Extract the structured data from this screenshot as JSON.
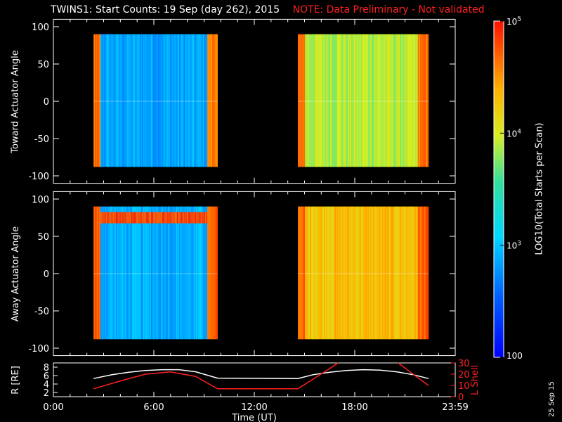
{
  "header": {
    "title": "TWINS1: Start Counts: 19 Sep (day 262), 2015",
    "note": "NOTE: Data Preliminary - Not validated",
    "note_color": "#ff2020"
  },
  "colorbar": {
    "label": "LOG10(Total Starts per Scan)",
    "tick_labels": [
      "100",
      "10^3",
      "10^4",
      "10^5"
    ],
    "tick_values": [
      100,
      1000,
      10000,
      100000
    ],
    "range": [
      100,
      100000
    ],
    "colormap": "rainbow"
  },
  "footer": {
    "date_stamp": "25 Sep 15"
  },
  "chart_data": [
    {
      "type": "heatmap",
      "name": "toward-panel",
      "ylabel": "Toward Actuator Angle",
      "ylim": [
        -110,
        110
      ],
      "yticks": [
        100,
        50,
        0,
        -50,
        -100
      ],
      "xlim": [
        0,
        24
      ],
      "x_tick_labels": [
        "0:00",
        "6:00",
        "12:00",
        "18:00",
        "23:59"
      ],
      "x_tick_values": [
        0,
        6,
        12,
        18,
        24
      ],
      "blocks": [
        {
          "t_start": 2.4,
          "t_end": 9.8,
          "angle_range": [
            -88,
            90
          ],
          "typical_log_counts": 2.85,
          "edge_log_counts": 4.6
        },
        {
          "t_start": 14.6,
          "t_end": 22.4,
          "angle_range": [
            -88,
            90
          ],
          "typical_log_counts": 3.9,
          "edge_log_counts": 4.6
        }
      ]
    },
    {
      "type": "heatmap",
      "name": "away-panel",
      "ylabel": "Away Actuator Angle",
      "ylim": [
        -110,
        110
      ],
      "yticks": [
        100,
        50,
        0,
        -50,
        -100
      ],
      "xlim": [
        0,
        24
      ],
      "x_tick_labels": [
        "0:00",
        "6:00",
        "12:00",
        "18:00",
        "23:59"
      ],
      "x_tick_values": [
        0,
        6,
        12,
        18,
        24
      ],
      "blocks": [
        {
          "t_start": 2.4,
          "t_end": 9.8,
          "angle_range": [
            -88,
            90
          ],
          "typical_log_counts": 2.9,
          "edge_log_counts": 4.7,
          "band_angle": 75,
          "band_log_counts": 4.8
        },
        {
          "t_start": 14.6,
          "t_end": 22.4,
          "angle_range": [
            -88,
            90
          ],
          "typical_log_counts": 4.3,
          "edge_log_counts": 4.7
        }
      ]
    },
    {
      "type": "line",
      "name": "orbit-panel",
      "xlabel": "Time (UT)",
      "x_tick_labels": [
        "0:00",
        "6:00",
        "12:00",
        "18:00",
        "23:59"
      ],
      "x_tick_values": [
        0,
        6,
        12,
        18,
        24
      ],
      "xlim": [
        0,
        24
      ],
      "ylabel": "R [RE]",
      "ylim": [
        1,
        9
      ],
      "yticks": [
        2,
        4,
        6,
        8
      ],
      "y2label": "L Shell",
      "y2lim": [
        0,
        30
      ],
      "y2ticks": [
        0,
        10,
        20,
        30
      ],
      "y2_color": "#ff2020",
      "series": [
        {
          "name": "R",
          "axis": "left",
          "color": "#ffffff",
          "x": [
            2.4,
            3.5,
            4.5,
            5.5,
            6.5,
            7.5,
            8.5,
            9.8,
            14.6,
            15.5,
            16.5,
            17.5,
            18.5,
            19.5,
            20.5,
            21.5,
            22.4
          ],
          "y": [
            5.3,
            6.2,
            6.8,
            7.2,
            7.4,
            7.4,
            6.9,
            5.4,
            5.3,
            6.2,
            6.8,
            7.2,
            7.4,
            7.3,
            6.9,
            6.2,
            5.3
          ]
        },
        {
          "name": "L Shell",
          "axis": "right",
          "color": "#ff2020",
          "x": [
            2.4,
            4.0,
            5.5,
            7.0,
            8.5,
            9.8,
            14.6,
            16.5,
            17.0
          ],
          "y": [
            7,
            14,
            20,
            22,
            18,
            7,
            7,
            25,
            31
          ]
        },
        {
          "name": "L Shell 2",
          "axis": "right",
          "color": "#ff2020",
          "x": [
            20.6,
            21.3,
            22.4
          ],
          "y": [
            31,
            22,
            10
          ]
        }
      ]
    }
  ]
}
